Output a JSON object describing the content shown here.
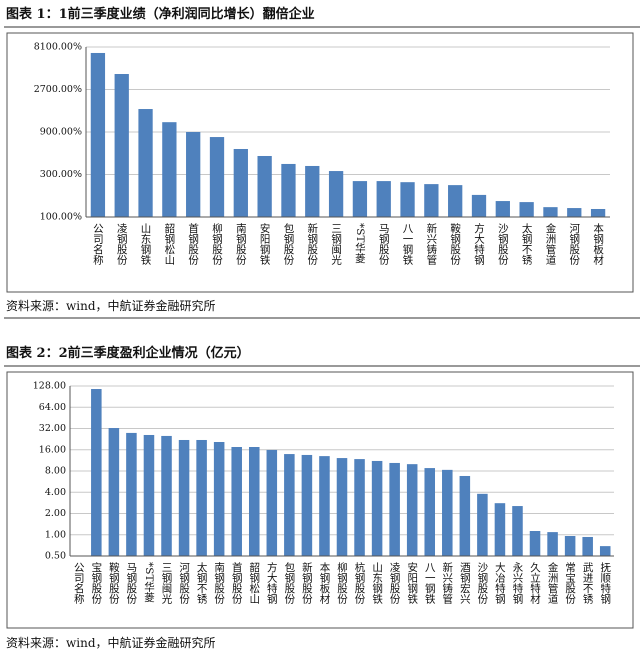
{
  "chart_data": [
    {
      "type": "bar",
      "title": "图表 1：1前三季度业绩（净利润同比增长）翻倍企业",
      "source": "资料来源：wind，中航证券金融研究所",
      "log_scale": true,
      "grid": true,
      "color": "#4f81bd",
      "categories": [
        "公司名称",
        "凌钢股份",
        "山东钢铁",
        "韶钢松山",
        "首钢股份",
        "柳钢股份",
        "南钢股份",
        "安阳钢铁",
        "包钢股份",
        "新钢股份",
        "三钢闽光",
        "*ST华菱",
        "马钢股份",
        "八一钢铁",
        "新兴铸管",
        "鞍钢股份",
        "方大特钢",
        "沙钢股份",
        "太钢不锈",
        "金洲管道",
        "河钢股份",
        "本钢板材"
      ],
      "values": [
        6940,
        4030,
        1630,
        1160,
        900,
        790,
        580,
        484,
        394,
        374,
        328,
        253,
        253,
        246,
        234,
        228,
        177,
        151,
        147,
        129,
        126,
        123
      ],
      "ylim": [
        100,
        8100
      ],
      "yticks": [
        {
          "value": 100,
          "label": "100.00%"
        },
        {
          "value": 300,
          "label": "300.00%"
        },
        {
          "value": 900,
          "label": "900.00%"
        },
        {
          "value": 2700,
          "label": "2700.00%"
        },
        {
          "value": 8100,
          "label": "8100.00%"
        }
      ]
    },
    {
      "type": "bar",
      "title": "图表 2：2前三季度盈利企业情况（亿元）",
      "source": "资料来源：wind，中航证券金融研究所",
      "log_scale": true,
      "grid": true,
      "color": "#4f81bd",
      "categories": [
        "公司名称",
        "宝钢股份",
        "鞍钢股份",
        "马钢股份",
        "*ST华菱",
        "三钢闽光",
        "河钢股份",
        "太钢不锈",
        "南钢股份",
        "首钢股份",
        "韶钢松山",
        "方大特钢",
        "包钢股份",
        "新钢股份",
        "本钢板材",
        "柳钢股份",
        "杭钢股份",
        "山东钢铁",
        "凌钢股份",
        "安阳钢铁",
        "八一钢铁",
        "新兴铸管",
        "酒钢宏兴",
        "沙钢股份",
        "大冶特钢",
        "永兴特钢",
        "久立特材",
        "金洲管道",
        "常宝股份",
        "武进不锈",
        "抚顺特钢"
      ],
      "values": [
        null,
        116,
        32.5,
        27.7,
        25.9,
        25.1,
        22,
        22,
        20.6,
        17.5,
        17.5,
        15.9,
        13.9,
        13.5,
        13.0,
        12.2,
        11.8,
        11.1,
        10.4,
        10.0,
        8.8,
        8.3,
        6.8,
        3.8,
        2.8,
        2.55,
        1.13,
        1.09,
        0.96,
        0.93,
        0.69
      ],
      "ylim": [
        0.5,
        128
      ],
      "yticks": [
        {
          "value": 0.5,
          "label": "0.50"
        },
        {
          "value": 1,
          "label": "1.00"
        },
        {
          "value": 2,
          "label": "2.00"
        },
        {
          "value": 4,
          "label": "4.00"
        },
        {
          "value": 8,
          "label": "8.00"
        },
        {
          "value": 16,
          "label": "16.00"
        },
        {
          "value": 32,
          "label": "32.00"
        },
        {
          "value": 64,
          "label": "64.00"
        },
        {
          "value": 128,
          "label": "128.00"
        }
      ]
    }
  ]
}
